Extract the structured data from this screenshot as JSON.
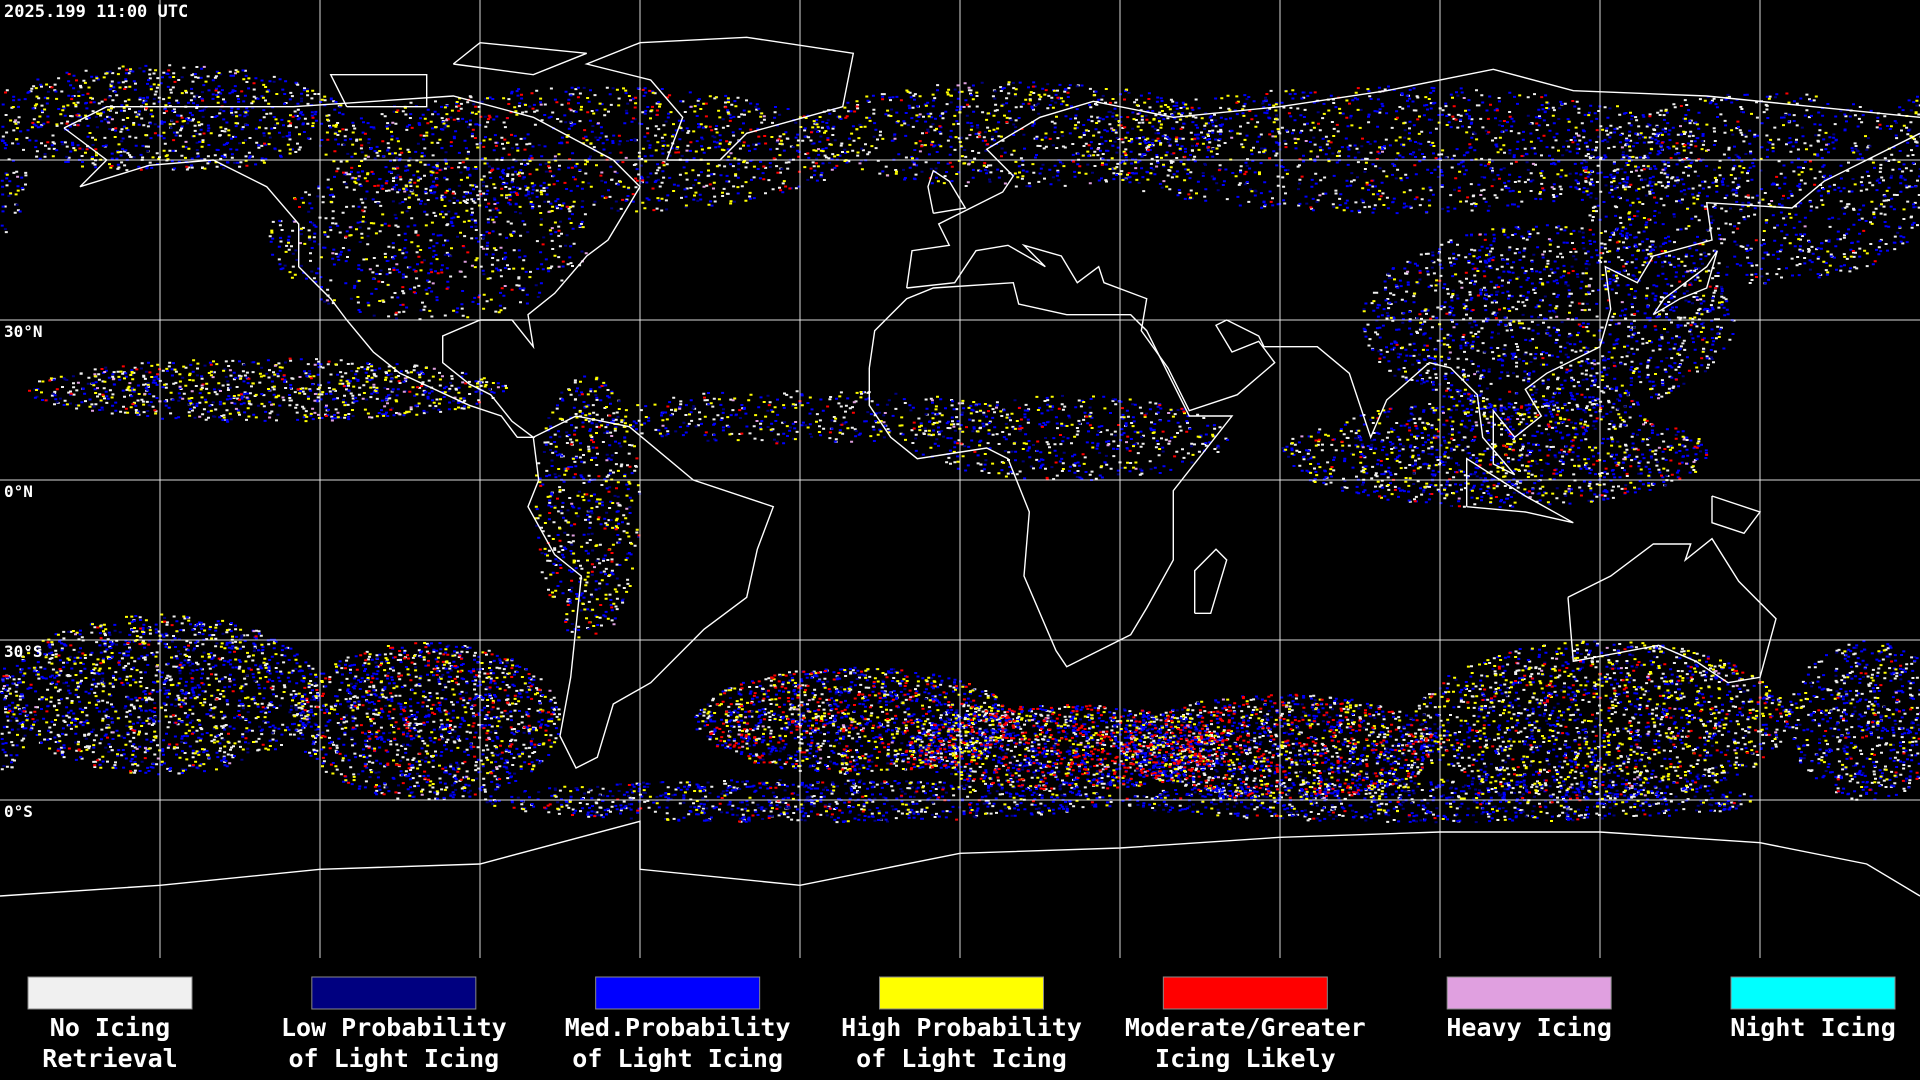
{
  "header": {
    "timestamp": "2025.199 11:00 UTC"
  },
  "map": {
    "latitude_labels": [
      "30°N",
      "0°N",
      "30°S",
      "0°S"
    ]
  },
  "legend": {
    "items": [
      {
        "lines": [
          "No Icing",
          "Retrieval"
        ],
        "color": "#f0f0f0"
      },
      {
        "lines": [
          "Low Probability",
          "of Light Icing"
        ],
        "color": "#000080"
      },
      {
        "lines": [
          "Med.Probability",
          "of Light Icing"
        ],
        "color": "#0000ff"
      },
      {
        "lines": [
          "High Probability",
          "of Light Icing"
        ],
        "color": "#ffff00"
      },
      {
        "lines": [
          "Moderate/Greater",
          "Icing Likely"
        ],
        "color": "#ff0000"
      },
      {
        "lines": [
          "Heavy Icing"
        ],
        "color": "#e0a0e0"
      },
      {
        "lines": [
          "Night Icing"
        ],
        "color": "#00ffff"
      }
    ]
  }
}
